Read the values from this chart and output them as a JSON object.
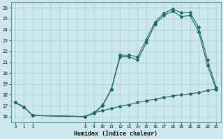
{
  "xlabel": "Humidex (Indice chaleur)",
  "bg_color": "#cce8ec",
  "grid_color": "#a8cdd4",
  "line_color": "#1a6b5a",
  "ylim": [
    15.5,
    26.5
  ],
  "xlim": [
    -0.5,
    23.5
  ],
  "yticks": [
    16,
    17,
    18,
    19,
    20,
    21,
    22,
    23,
    24,
    25,
    26
  ],
  "xticks": [
    0,
    1,
    2,
    8,
    9,
    10,
    11,
    12,
    13,
    14,
    15,
    16,
    17,
    18,
    19,
    20,
    21,
    22,
    23
  ],
  "series1_x": [
    0,
    1,
    2,
    8,
    9,
    10,
    11,
    12,
    13,
    14,
    15,
    16,
    17,
    18,
    19,
    20,
    21,
    22,
    23
  ],
  "series1_y": [
    17.3,
    16.9,
    16.1,
    16.0,
    16.3,
    17.0,
    18.5,
    21.5,
    21.5,
    21.2,
    22.8,
    24.5,
    25.3,
    25.7,
    25.2,
    25.3,
    23.8,
    20.7,
    18.5
  ],
  "series2_x": [
    0,
    1,
    2,
    8,
    9,
    10,
    11,
    12,
    13,
    14,
    15,
    16,
    17,
    18,
    19,
    20,
    21,
    22,
    23
  ],
  "series2_y": [
    17.3,
    16.85,
    16.1,
    16.0,
    16.35,
    17.05,
    18.55,
    21.65,
    21.65,
    21.5,
    23.1,
    24.7,
    25.5,
    25.9,
    25.55,
    25.55,
    24.2,
    21.2,
    18.65
  ],
  "series3_x": [
    0,
    1,
    2,
    8,
    9,
    10,
    11,
    12,
    13,
    14,
    15,
    16,
    17,
    18,
    19,
    20,
    21,
    22,
    23
  ],
  "series3_y": [
    17.3,
    16.85,
    16.1,
    16.0,
    16.35,
    16.55,
    16.75,
    16.95,
    17.1,
    17.3,
    17.45,
    17.6,
    17.75,
    17.9,
    18.0,
    18.1,
    18.2,
    18.4,
    18.55
  ]
}
